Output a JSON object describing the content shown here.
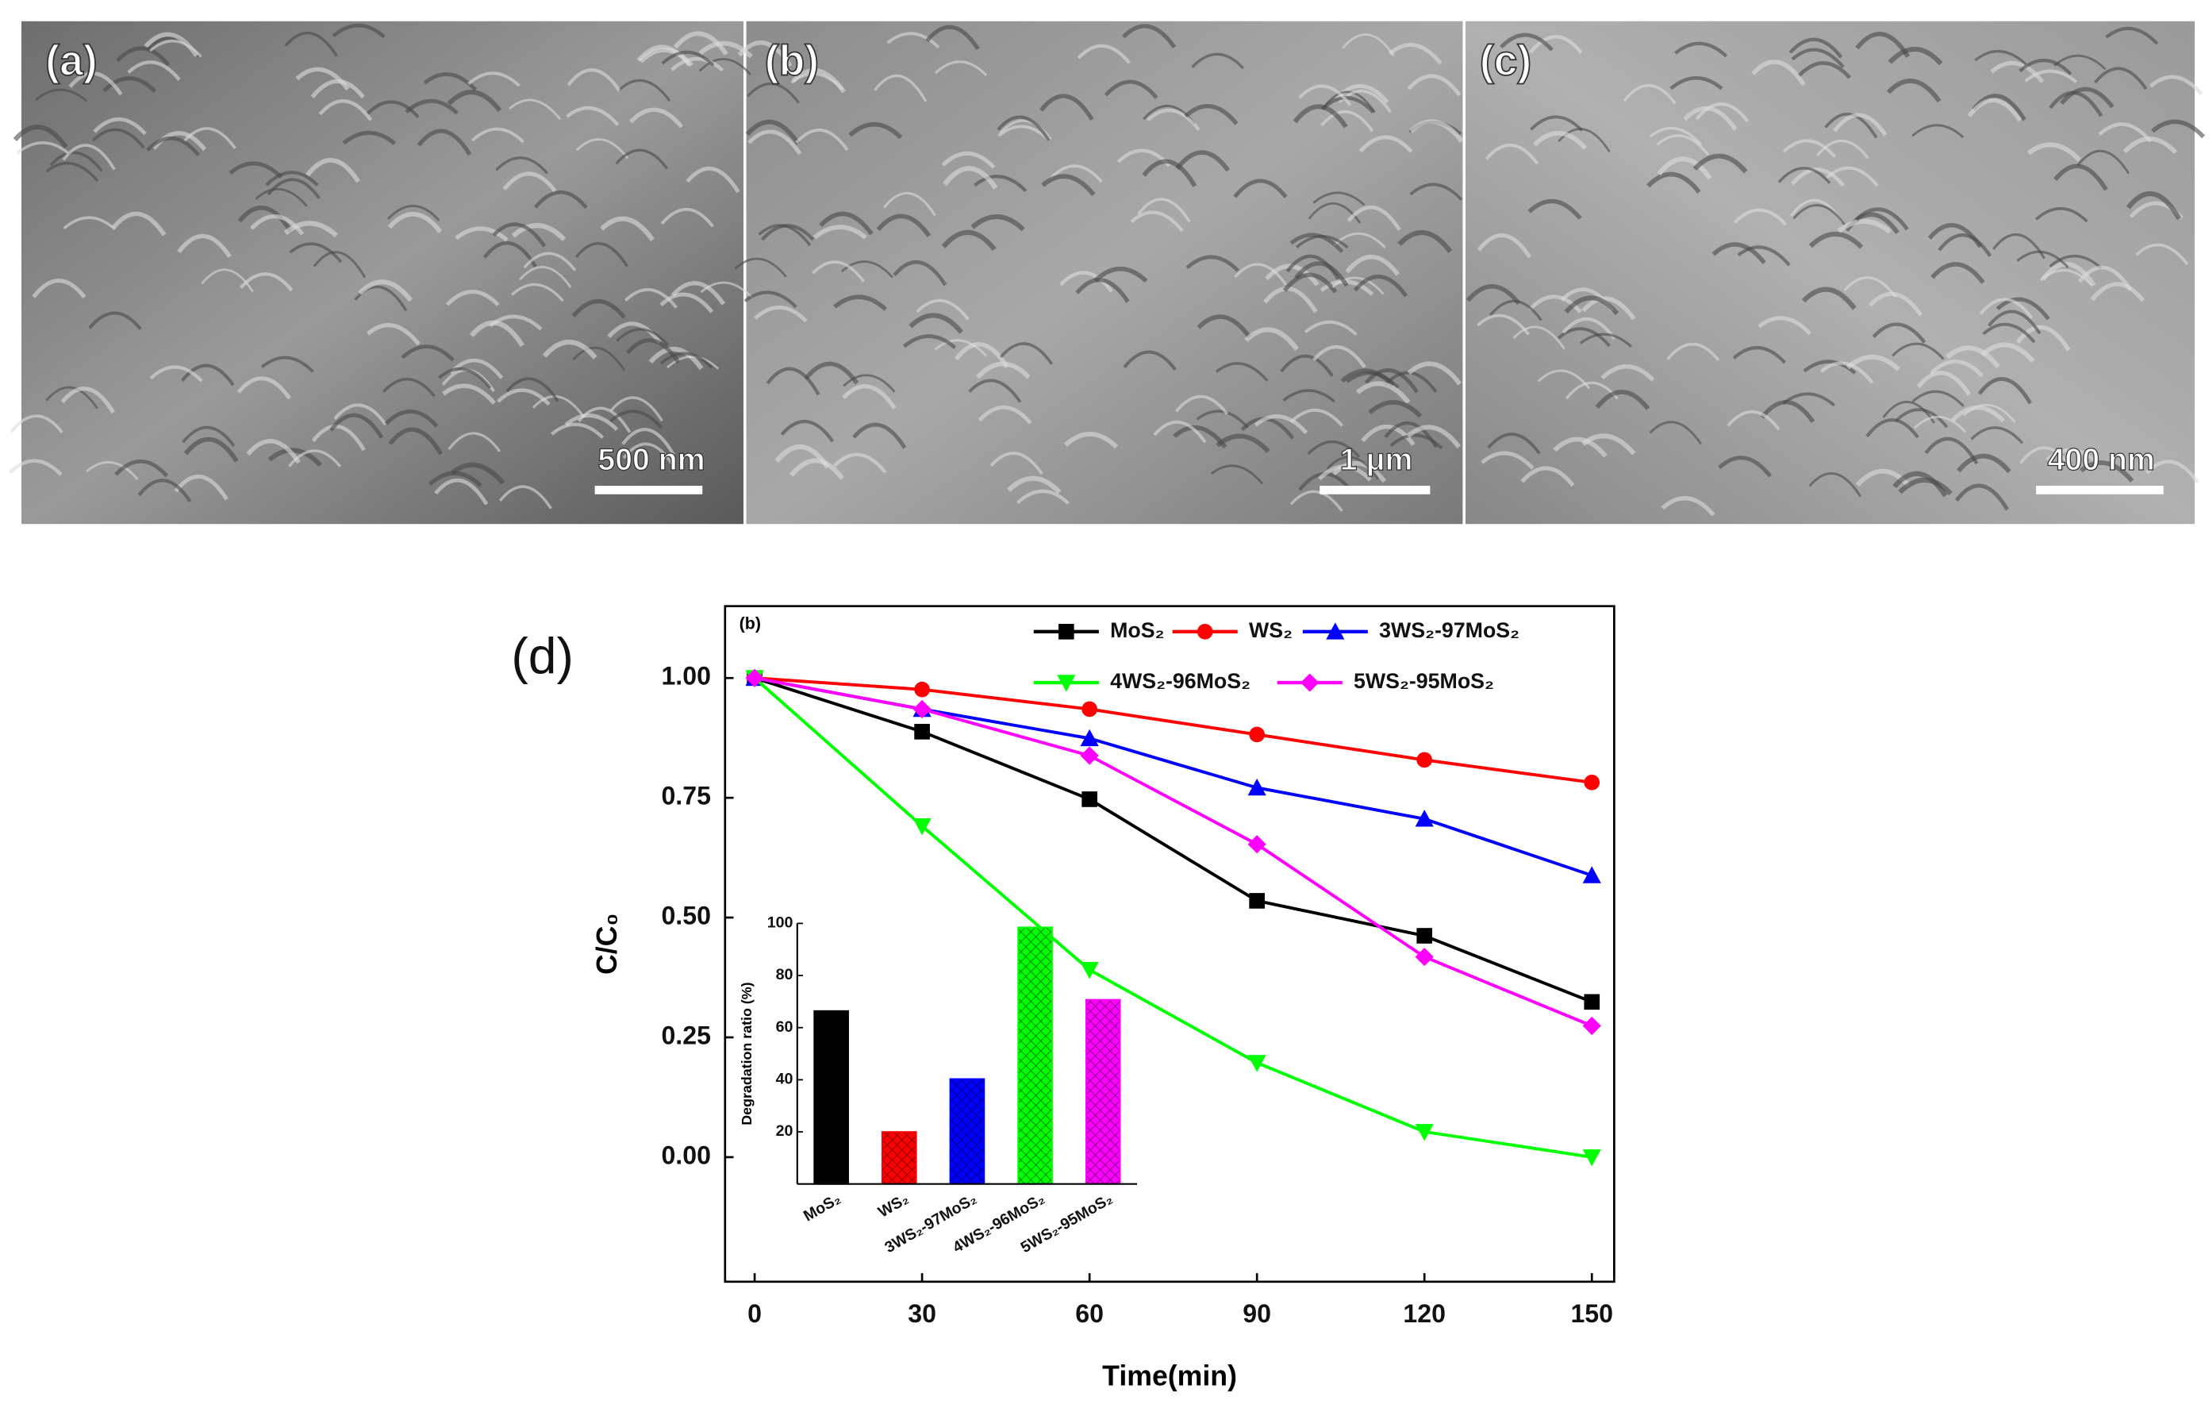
{
  "images": [
    {
      "label": "(a)",
      "scale_bar": "500 nm"
    },
    {
      "label": "(b)",
      "scale_bar": "1 μm"
    },
    {
      "label": "(c)",
      "scale_bar": "400 nm"
    }
  ],
  "panel_label": "(d)",
  "chart_data": [
    {
      "type": "line",
      "annotation": "(b)",
      "x_label": "Time(min)",
      "y_label": "C/C₀",
      "x": [
        0,
        30,
        60,
        90,
        120,
        150
      ],
      "xlim": [
        -5.3,
        154
      ],
      "xticks": [
        0,
        30,
        60,
        90,
        120,
        150
      ],
      "ylim": [
        -0.26,
        1.15
      ],
      "yticks": [
        {
          "value": 0,
          "label": "0.00"
        },
        {
          "value": 0.25,
          "label": "0.25"
        },
        {
          "value": 0.5,
          "label": "0.50"
        },
        {
          "value": 0.75,
          "label": "0.75"
        },
        {
          "value": 1,
          "label": "1.00"
        }
      ],
      "series": [
        {
          "name": "MoS₂",
          "color": "#000000",
          "marker": "square",
          "values": [
            1,
            0.888,
            0.747,
            0.535,
            0.462,
            0.324
          ]
        },
        {
          "name": "WS₂",
          "color": "#ff0000",
          "marker": "circle",
          "values": [
            1,
            0.976,
            0.935,
            0.882,
            0.829,
            0.782
          ]
        },
        {
          "name": "3WS₂-97MoS₂",
          "color": "#0000ff",
          "marker": "triangle-up",
          "values": [
            1,
            0.935,
            0.874,
            0.771,
            0.706,
            0.588
          ]
        },
        {
          "name": "4WS₂-96MoS₂",
          "color": "#00ff00",
          "marker": "triangle-down",
          "values": [
            1,
            0.691,
            0.391,
            0.197,
            0.053,
            0
          ]
        },
        {
          "name": "5WS₂-95MoS₂",
          "color": "#ff00ff",
          "marker": "diamond",
          "values": [
            1,
            0.935,
            0.838,
            0.653,
            0.418,
            0.274
          ]
        }
      ]
    },
    {
      "type": "bar",
      "y_label": "Degradation ratio (%)",
      "categories": [
        "MoS₂",
        "WS₂",
        "3WS₂-97MoS₂",
        "4WS₂-96MoS₂",
        "5WS₂-95MoS₂"
      ],
      "values": [
        66.4,
        20,
        40.3,
        98.5,
        70.7
      ],
      "colors": [
        "#000000",
        "#ff0000",
        "#0000ff",
        "#00ff00",
        "#ff00ff"
      ],
      "pattern": "crosshatch",
      "ylim": [
        0,
        100
      ],
      "yticks": [
        20,
        40,
        60,
        80,
        100
      ]
    }
  ]
}
